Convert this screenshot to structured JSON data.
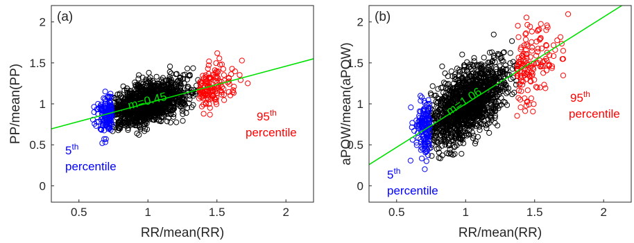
{
  "chart_data": [
    {
      "type": "scatter",
      "panel_label": "(a)",
      "xlabel": "RR/mean(RR)",
      "ylabel": "PP/mean(PP)",
      "xlim": [
        0.3,
        2.2
      ],
      "ylim": [
        -0.2,
        2.2
      ],
      "xticks": [
        "0.5",
        "1",
        "1.5",
        "2"
      ],
      "yticks": [
        "0",
        "0.5",
        "1",
        "1.5",
        "2"
      ],
      "grid": false,
      "fit_line": {
        "slope": 0.45,
        "intercept": 0.56,
        "label": "m=0.45",
        "color": "#00e000"
      },
      "groups": [
        {
          "name": "low",
          "color": "#0000ff",
          "x_range": [
            0.45,
            0.74
          ],
          "label_base": "5",
          "label_sup": "th",
          "label_line2": "percentile"
        },
        {
          "name": "mid",
          "color": "#000000",
          "x_range": [
            0.74,
            1.37
          ]
        },
        {
          "name": "high",
          "color": "#ff0000",
          "x_range": [
            1.37,
            2.15
          ],
          "label_base": "95",
          "label_sup": "th",
          "label_line2": "percentile"
        }
      ],
      "spread": 0.12
    },
    {
      "type": "scatter",
      "panel_label": "(b)",
      "xlabel": "RR/mean(RR)",
      "ylabel": "aPOW/mean(aPOW)",
      "xlim": [
        0.3,
        2.2
      ],
      "ylim": [
        -0.2,
        2.2
      ],
      "xticks": [
        "0.5",
        "1",
        "1.5",
        "2"
      ],
      "yticks": [
        "0",
        "0.5",
        "1",
        "1.5",
        "2"
      ],
      "grid": false,
      "fit_line": {
        "slope": 1.06,
        "intercept": -0.06,
        "label": "m=1.06",
        "color": "#00e000"
      },
      "groups": [
        {
          "name": "low",
          "color": "#0000ff",
          "x_range": [
            0.5,
            0.74
          ],
          "label_base": "5",
          "label_sup": "th",
          "label_line2": "percentile"
        },
        {
          "name": "mid",
          "color": "#000000",
          "x_range": [
            0.74,
            1.37
          ]
        },
        {
          "name": "high",
          "color": "#ff0000",
          "x_range": [
            1.37,
            2.15
          ],
          "label_base": "95",
          "label_sup": "th",
          "label_line2": "percentile"
        }
      ],
      "spread": 0.2
    }
  ]
}
